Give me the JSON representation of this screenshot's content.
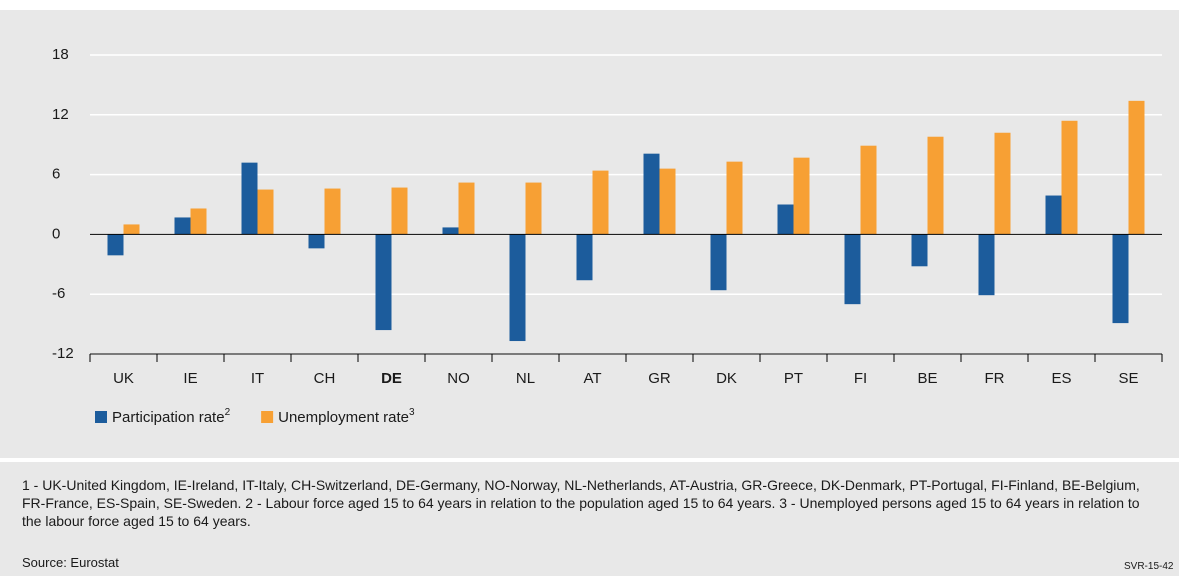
{
  "chart_data": {
    "type": "bar",
    "categories": [
      "UK",
      "IE",
      "IT",
      "CH",
      "DE",
      "NO",
      "NL",
      "AT",
      "GR",
      "DK",
      "PT",
      "FI",
      "BE",
      "FR",
      "ES",
      "SE"
    ],
    "bold_categories": [
      4
    ],
    "series": [
      {
        "name": "Participation rate",
        "note_ref": "2",
        "color": "#1c5c9c",
        "values": [
          -2.1,
          1.7,
          7.2,
          -1.4,
          -9.6,
          0.7,
          -10.7,
          -4.6,
          8.1,
          -5.6,
          3.0,
          -7.0,
          -3.2,
          -6.1,
          3.9,
          -8.9
        ]
      },
      {
        "name": "Unemployment rate",
        "note_ref": "3",
        "color": "#f7a034",
        "values": [
          1.0,
          2.6,
          4.5,
          4.6,
          4.7,
          5.2,
          5.2,
          6.4,
          6.6,
          7.3,
          7.7,
          8.9,
          9.8,
          10.2,
          11.4,
          13.4
        ]
      }
    ],
    "ylim": [
      -12,
      18
    ],
    "yticks": [
      -12,
      -6,
      0,
      6,
      12,
      18
    ],
    "grid": true,
    "footnote": "1 - UK-United Kingdom, IE-Ireland, IT-Italy, CH-Switzerland, DE-Germany, NO-Norway, NL-Netherlands, AT-Austria, GR-Greece, DK-Denmark, PT-Portugal, FI-Finland, BE-Belgium, FR-France, ES-Spain, SE-Sweden. 2 - Labour force aged 15 to 64 years in relation to the population aged 15 to 64 years. 3 - Unemployed persons aged 15 to 64 years in relation to the labour force aged 15 to 64 years.",
    "source": "Source: Eurostat",
    "code": "SVR-15-42"
  }
}
